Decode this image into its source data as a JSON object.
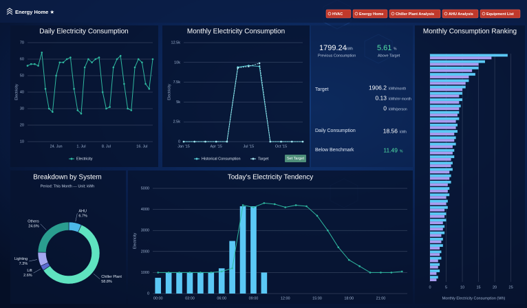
{
  "header": {
    "title": "Energy Home ★",
    "nav": [
      "HVAC",
      "Energy Home",
      "Chiller Plant Analysis",
      "AHU Analysis",
      "Equipment List"
    ]
  },
  "stats": {
    "previous": {
      "value": 1799.24,
      "unit": "kWh",
      "label": "Previous Consumption"
    },
    "above_target": {
      "value": 5.61,
      "unit": "%",
      "label": "Above Target"
    },
    "target": {
      "label": "Target",
      "rows": [
        {
          "value": 1906.2,
          "unit": "kWh/month"
        },
        {
          "value": 0.13,
          "unit": "kWh/m²·month"
        },
        {
          "value": 0,
          "unit": "kWh/person"
        }
      ]
    },
    "daily": {
      "label": "Daily Consumption",
      "value": 18.56,
      "unit": "kWh"
    },
    "benchmark": {
      "label": "Below Benchmark",
      "value": 11.49,
      "unit": "%"
    }
  },
  "chart_data": [
    {
      "type": "line",
      "title": "Daily Electricity Consumption",
      "ylabel": "Electricity",
      "categories": [
        null,
        null,
        null,
        null,
        null,
        null,
        null,
        null,
        "24. Jun",
        null,
        null,
        null,
        null,
        null,
        null,
        "1. Jul",
        null,
        null,
        null,
        null,
        null,
        null,
        "8. Jul",
        null,
        null,
        null,
        null,
        null,
        null,
        null,
        null,
        null,
        "16. Jul",
        null,
        null,
        null
      ],
      "series": [
        {
          "name": "Electricity",
          "color": "#2fb8a0",
          "values": [
            56,
            57,
            57,
            56,
            64,
            42,
            30,
            28,
            50,
            58,
            58,
            60,
            61,
            42,
            29,
            27,
            55,
            60,
            58,
            60,
            61,
            40,
            30,
            31,
            55,
            60,
            62,
            45,
            30,
            29,
            55,
            60,
            58,
            45,
            42,
            60
          ]
        }
      ],
      "ylim": [
        10,
        70
      ],
      "yticks": [
        10,
        20,
        30,
        40,
        50,
        60,
        70
      ],
      "grid": true
    },
    {
      "type": "line",
      "title": "Monthly Electricity Consumption",
      "ylabel": "Electricity",
      "categories": [
        "Jan '15",
        null,
        null,
        "Apr '15",
        null,
        null,
        "Jul '15",
        null,
        null,
        "Oct '15",
        null,
        null
      ],
      "series": [
        {
          "name": "Historical Consumption",
          "color": "#5ad0d8",
          "values": [
            0,
            0,
            0,
            0,
            0,
            9400,
            9600,
            9500,
            0,
            0,
            0,
            0
          ]
        },
        {
          "name": "Target",
          "color": "#a8e6f0",
          "values": [
            0,
            0,
            0,
            0,
            0,
            9300,
            9500,
            9900,
            0,
            0,
            0,
            0
          ]
        }
      ],
      "ylim": [
        0,
        12500
      ],
      "yticks": [
        0,
        {
          "value": 2500,
          "label": "2.5k"
        },
        {
          "value": 5000,
          "label": "5k"
        },
        {
          "value": 7500,
          "label": "7.5k"
        },
        {
          "value": 10000,
          "label": "10k"
        },
        {
          "value": 12500,
          "label": "12.5k"
        }
      ],
      "grid": true,
      "button": "Set Target"
    },
    {
      "type": "hbar",
      "title": "Monthly Consumption Ranking",
      "xlabel": "Monthly Electricity Consumption (Wh)",
      "categories": [
        null,
        null,
        null,
        null,
        null,
        null,
        null,
        null,
        null,
        null,
        null,
        null,
        null,
        null,
        null,
        null,
        null,
        null,
        null,
        null,
        null,
        null,
        null,
        null,
        null,
        null,
        null,
        null,
        null,
        null,
        null,
        null,
        null,
        null,
        null,
        null
      ],
      "series": [
        {
          "color": "#5bc8f5",
          "values": [
            24,
            17,
            15,
            14,
            12,
            11,
            10,
            10,
            9.5,
            9,
            9,
            8.5,
            8.5,
            8,
            8,
            7.5,
            7.5,
            7,
            7,
            6.5,
            6.5,
            6,
            6,
            5.5,
            5.5,
            5,
            5,
            4.5,
            4.5,
            4,
            4,
            3.5,
            3.5,
            3,
            3,
            2.5
          ]
        },
        {
          "color": "#a99cf0",
          "values": [
            19,
            15,
            13,
            12,
            11,
            10,
            9,
            9,
            9,
            8.5,
            8,
            8,
            7.5,
            7.5,
            7,
            7,
            6.5,
            6.5,
            6,
            6,
            5.5,
            5.5,
            5,
            5,
            4.5,
            4.5,
            4,
            4,
            3.5,
            3.5,
            3,
            3,
            2.5,
            2.5,
            2,
            2
          ]
        }
      ],
      "xlim": [
        0,
        27
      ],
      "xticks": [
        0,
        5,
        10,
        15,
        20,
        25
      ],
      "grid": true
    },
    {
      "type": "donut",
      "title": "Breakdown by System",
      "subtitle": "Period: This Month --- Unit: kWh",
      "categories": [
        "AHU",
        "Chiller Plant",
        "Lift",
        "Lighting",
        "Others"
      ],
      "values": [
        6.7,
        58.8,
        2.6,
        7.3,
        24.6
      ],
      "value_labels": [
        "6.7%",
        "58.8%",
        "2.6%",
        "7.3%",
        "24.6%"
      ],
      "colors": [
        "#4db8e8",
        "#5fe3c0",
        "#5a6ad0",
        "#a3a8f0",
        "#2a9d8f"
      ]
    },
    {
      "type": "combo",
      "title": "Today's Electricity Tendency",
      "ylabel": "Electricity",
      "categories": [
        "00:00",
        null,
        null,
        "03:00",
        null,
        null,
        "06:00",
        null,
        null,
        "09:00",
        null,
        null,
        "12:00",
        null,
        null,
        "15:00",
        null,
        null,
        "18:00",
        null,
        null,
        "21:00",
        null,
        null
      ],
      "series": [
        {
          "type": "bar",
          "color": "#5bc8f5",
          "values": [
            750,
            1000,
            1000,
            1000,
            1000,
            1000,
            1200,
            2500,
            4150,
            4150,
            1000,
            null,
            null,
            null,
            null,
            null,
            null,
            null,
            null,
            null,
            null,
            null,
            null,
            null
          ]
        },
        {
          "type": "line",
          "color": "#2fb8a0",
          "values": [
            1000,
            1000,
            1000,
            1000,
            1000,
            1000,
            1050,
            1200,
            4200,
            4100,
            4300,
            4250,
            4100,
            4200,
            4150,
            3700,
            3000,
            2200,
            1600,
            1300,
            1000,
            1000,
            1000,
            1050
          ]
        }
      ],
      "ylim": [
        0,
        5000
      ],
      "yticks": [
        0,
        1000,
        2000,
        3000,
        4000,
        5000
      ],
      "grid": true
    }
  ]
}
